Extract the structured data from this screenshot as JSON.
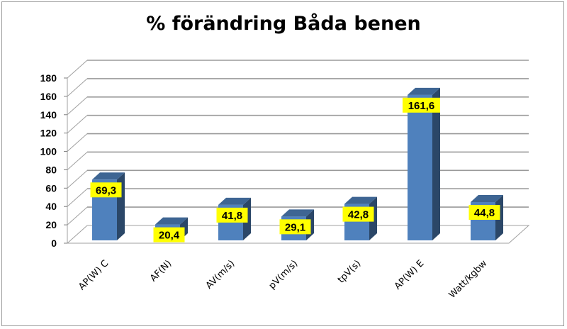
{
  "chart_data": {
    "type": "bar",
    "title": "% förändring Båda benen",
    "categories": [
      "AP(W) C",
      "AF(N)",
      "AV(m/s)",
      "pV(m/s)",
      "tpV(s)",
      "AP(W) E",
      "Watt/kgbw"
    ],
    "values": [
      69.3,
      20.4,
      41.8,
      29.1,
      42.8,
      161.6,
      44.8
    ],
    "data_labels": [
      "69,3",
      "20,4",
      "41,8",
      "29,1",
      "42,8",
      "161,6",
      "44,8"
    ],
    "ylim": [
      0,
      180
    ],
    "yticks": [
      0,
      20,
      40,
      60,
      80,
      100,
      120,
      140,
      160,
      180
    ],
    "grid": true,
    "three_d": true,
    "bar_color": "#4F81BD",
    "label_background": "#FFFF00"
  }
}
